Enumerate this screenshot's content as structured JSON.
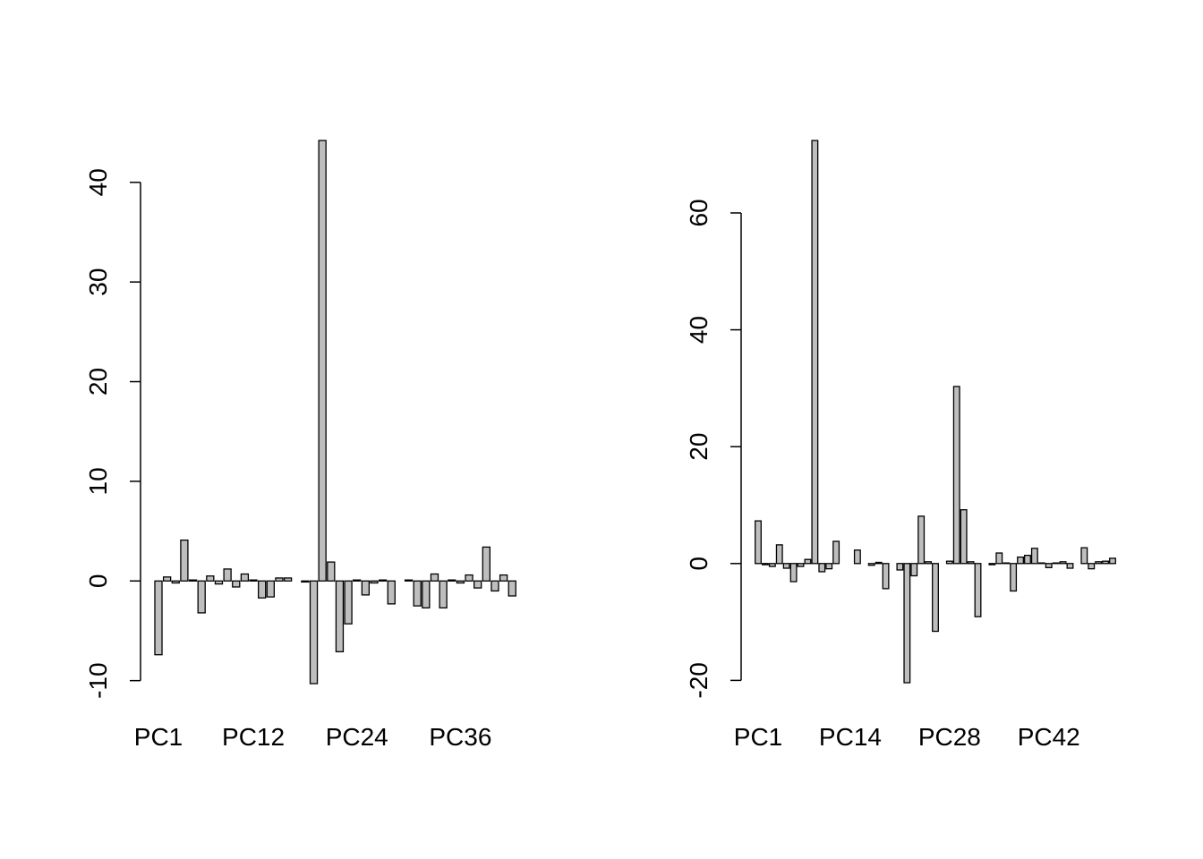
{
  "chart_data": [
    {
      "type": "bar",
      "color": "#bebebe",
      "categories": [
        "PC1",
        null,
        null,
        null,
        null,
        null,
        null,
        null,
        null,
        null,
        null,
        "PC12",
        null,
        null,
        null,
        null,
        null,
        null,
        null,
        null,
        null,
        null,
        null,
        "PC24",
        null,
        null,
        null,
        null,
        null,
        null,
        null,
        null,
        null,
        null,
        null,
        "PC36",
        null,
        null,
        null,
        null,
        null,
        null
      ],
      "values": [
        -7.4,
        0.4,
        -0.2,
        4.1,
        0.1,
        -3.2,
        0.5,
        -0.3,
        1.2,
        -0.6,
        0.7,
        0.1,
        -1.7,
        -1.6,
        0.3,
        0.3,
        0,
        -0.1,
        -10.3,
        44.2,
        1.9,
        -7.1,
        -4.3,
        0.1,
        -1.4,
        -0.2,
        0.1,
        -2.3,
        0,
        0.1,
        -2.5,
        -2.7,
        0.7,
        -2.7,
        0.1,
        -0.2,
        0.6,
        -0.7,
        3.4,
        -1.0,
        0.6,
        -1.5
      ],
      "ylim": [
        -10.3,
        44.2
      ],
      "yticks": [
        -10,
        0,
        10,
        20,
        30,
        40
      ]
    },
    {
      "type": "bar",
      "color": "#bebebe",
      "categories": [
        "PC1",
        null,
        null,
        null,
        null,
        null,
        null,
        null,
        null,
        null,
        null,
        null,
        null,
        "PC14",
        null,
        null,
        null,
        null,
        null,
        null,
        null,
        null,
        null,
        null,
        null,
        null,
        null,
        "PC28",
        null,
        null,
        null,
        null,
        null,
        null,
        null,
        null,
        null,
        null,
        null,
        null,
        null,
        "PC42",
        null,
        null,
        null,
        null,
        null,
        null,
        null,
        null,
        null
      ],
      "values": [
        7.3,
        -0.2,
        -0.5,
        3.2,
        -0.8,
        -3.1,
        -0.5,
        0.7,
        72.4,
        -1.4,
        -0.9,
        3.8,
        0,
        0,
        2.3,
        0,
        -0.3,
        0.2,
        -4.3,
        0,
        -1.1,
        -20.4,
        -2.1,
        8.1,
        0.3,
        -11.6,
        0,
        0.4,
        30.3,
        9.2,
        0.3,
        -9.1,
        0,
        -0.2,
        1.8,
        0.1,
        -4.7,
        1.1,
        1.4,
        2.6,
        0.1,
        -0.7,
        0.1,
        0.3,
        -0.8,
        0,
        2.7,
        -0.9,
        0.3,
        0.4,
        0.9
      ],
      "ylim": [
        -20.4,
        72.4
      ],
      "yticks": [
        -20,
        0,
        20,
        40,
        60
      ]
    }
  ]
}
